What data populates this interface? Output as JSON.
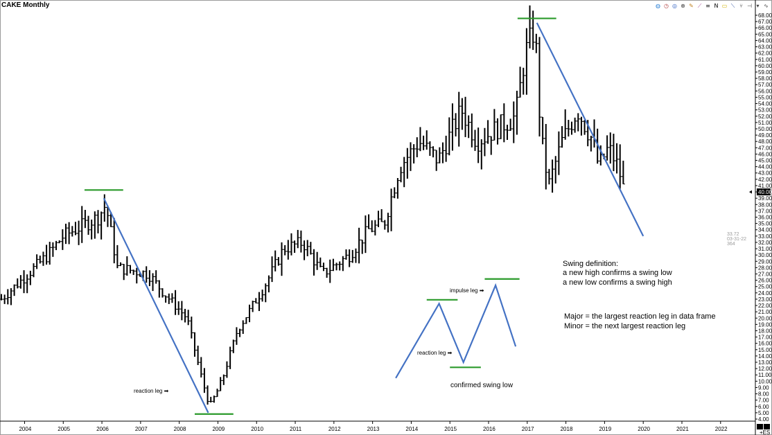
{
  "window": {
    "title": "CAKE Monthly"
  },
  "toolbar": {
    "icons": [
      {
        "name": "globe-icon",
        "glyph": "◍",
        "color": "#2a7fd4"
      },
      {
        "name": "clock-icon",
        "glyph": "◷",
        "color": "#b04040"
      },
      {
        "name": "target-icon",
        "glyph": "◎",
        "color": "#3060c0"
      },
      {
        "name": "zoom-icon",
        "glyph": "⊕",
        "color": "#404040"
      },
      {
        "name": "pencil-icon",
        "glyph": "✎",
        "color": "#c08020"
      },
      {
        "name": "wand-icon",
        "glyph": "⟋",
        "color": "#a04090"
      },
      {
        "name": "equals-icon",
        "glyph": "≡",
        "color": "#303030"
      },
      {
        "name": "n-icon",
        "glyph": "N",
        "color": "#000000"
      },
      {
        "name": "rect-icon",
        "glyph": "▭",
        "color": "#d0b000"
      },
      {
        "name": "line-icon",
        "glyph": "⟍",
        "color": "#3050a0"
      },
      {
        "name": "fork-icon",
        "glyph": "⑂",
        "color": "#404040"
      },
      {
        "name": "hline-icon",
        "glyph": "⊣",
        "color": "#404040"
      },
      {
        "name": "down-icon",
        "glyph": "▾",
        "color": "#404040"
      },
      {
        "name": "wave-icon",
        "glyph": "∿",
        "color": "#404040"
      }
    ]
  },
  "chart_data": {
    "type": "bar",
    "title": "CAKE Monthly",
    "subtype": "ohlc",
    "ylim": [
      4,
      68
    ],
    "y_tick_step": 1,
    "xlim_years": [
      2003.4,
      2022.9
    ],
    "x_ticks": [
      "2004",
      "2005",
      "2006",
      "2007",
      "2008",
      "2009",
      "2010",
      "2011",
      "2012",
      "2013",
      "2014",
      "2015",
      "2016",
      "2017",
      "2018",
      "2019",
      "2020",
      "2021",
      "2022"
    ],
    "current_price": "40.00",
    "price_key_points": [
      {
        "date": 2003.4,
        "price": 23.0
      },
      {
        "date": 2004.6,
        "price": 30.0
      },
      {
        "date": 2005.0,
        "price": 33.0
      },
      {
        "date": 2005.9,
        "price": 36.0
      },
      {
        "date": 2006.1,
        "price": 38.0
      },
      {
        "date": 2006.4,
        "price": 28.0
      },
      {
        "date": 2007.2,
        "price": 27.0
      },
      {
        "date": 2007.6,
        "price": 24.0
      },
      {
        "date": 2008.2,
        "price": 20.0
      },
      {
        "date": 2008.6,
        "price": 10.0
      },
      {
        "date": 2008.8,
        "price": 6.0
      },
      {
        "date": 2009.1,
        "price": 10.0
      },
      {
        "date": 2009.5,
        "price": 18.0
      },
      {
        "date": 2010.2,
        "price": 25.0
      },
      {
        "date": 2010.7,
        "price": 31.0
      },
      {
        "date": 2011.2,
        "price": 32.0
      },
      {
        "date": 2011.7,
        "price": 27.0
      },
      {
        "date": 2012.4,
        "price": 30.0
      },
      {
        "date": 2012.9,
        "price": 34.0
      },
      {
        "date": 2013.3,
        "price": 35.0
      },
      {
        "date": 2013.7,
        "price": 44.0
      },
      {
        "date": 2014.2,
        "price": 48.0
      },
      {
        "date": 2014.7,
        "price": 45.0
      },
      {
        "date": 2015.3,
        "price": 53.0
      },
      {
        "date": 2015.7,
        "price": 48.0
      },
      {
        "date": 2016.2,
        "price": 50.0
      },
      {
        "date": 2016.7,
        "price": 52.0
      },
      {
        "date": 2016.95,
        "price": 62.0
      },
      {
        "date": 2017.2,
        "price": 66.0
      },
      {
        "date": 2017.35,
        "price": 49.0
      },
      {
        "date": 2017.55,
        "price": 41.0
      },
      {
        "date": 2017.9,
        "price": 48.0
      },
      {
        "date": 2018.3,
        "price": 53.0
      },
      {
        "date": 2018.7,
        "price": 48.0
      },
      {
        "date": 2018.85,
        "price": 44.0
      },
      {
        "date": 2019.1,
        "price": 47.0
      },
      {
        "date": 2019.35,
        "price": 44.0
      },
      {
        "date": 2019.55,
        "price": 39.0
      }
    ],
    "trendlines": [
      {
        "name": "decline-2006",
        "from": {
          "date": 2006.05,
          "price": 39.0
        },
        "to": {
          "date": 2008.75,
          "price": 5.0
        },
        "color": "#4472c4"
      },
      {
        "name": "decline-2017",
        "from": {
          "date": 2017.25,
          "price": 66.8
        },
        "to": {
          "date": 2020.0,
          "price": 33.0
        },
        "color": "#4472c4"
      }
    ],
    "swing_lines": [
      {
        "name": "swing-high-2006",
        "from": {
          "date": 2005.55,
          "price": 40.3
        },
        "to": {
          "date": 2006.55,
          "price": 40.3
        },
        "color": "#2a9a2a"
      },
      {
        "name": "swing-low-2009",
        "from": {
          "date": 2008.4,
          "price": 4.8
        },
        "to": {
          "date": 2009.4,
          "price": 4.8
        },
        "color": "#2a9a2a"
      },
      {
        "name": "swing-high-2017",
        "from": {
          "date": 2016.75,
          "price": 67.5
        },
        "to": {
          "date": 2017.75,
          "price": 67.5
        },
        "color": "#2a9a2a"
      }
    ],
    "diagram": {
      "zigzag": [
        {
          "date": 2013.6,
          "price": 10.5
        },
        {
          "date": 2014.72,
          "price": 22.3
        },
        {
          "date": 2015.35,
          "price": 13.0
        },
        {
          "date": 2016.18,
          "price": 25.2
        },
        {
          "date": 2016.7,
          "price": 15.5
        }
      ],
      "levels": [
        {
          "from": {
            "date": 2014.4,
            "price": 22.9
          },
          "to": {
            "date": 2015.2,
            "price": 22.9
          }
        },
        {
          "from": {
            "date": 2015.0,
            "price": 12.2
          },
          "to": {
            "date": 2015.8,
            "price": 12.2
          }
        },
        {
          "from": {
            "date": 2015.9,
            "price": 26.2
          },
          "to": {
            "date": 2016.8,
            "price": 26.2
          }
        }
      ],
      "color_line": "#4472c4",
      "color_level": "#2a9a2a"
    },
    "annotations": {
      "reaction_leg_main": "reaction leg ➡",
      "reaction_leg_diagram": "reaction leg ➡",
      "impulse_leg": "impulse leg ➡",
      "confirmed_swing_low": "confirmed swing low",
      "swing_definition_title": "Swing definition:",
      "swing_definition_1": "a new high confirms a swing low",
      "swing_definition_2": "a new low confirms a swing high",
      "major_definition": "Major = the largest reaction leg in data frame",
      "minor_definition": "Minor = the next largest reaction leg"
    },
    "side_info": [
      "33.72",
      "03-31-22",
      "364"
    ],
    "corner_label": "+ES",
    "colors": {
      "bars": "#000000",
      "trend": "#4472c4",
      "level": "#2a9a2a",
      "axis": "#000000"
    }
  }
}
